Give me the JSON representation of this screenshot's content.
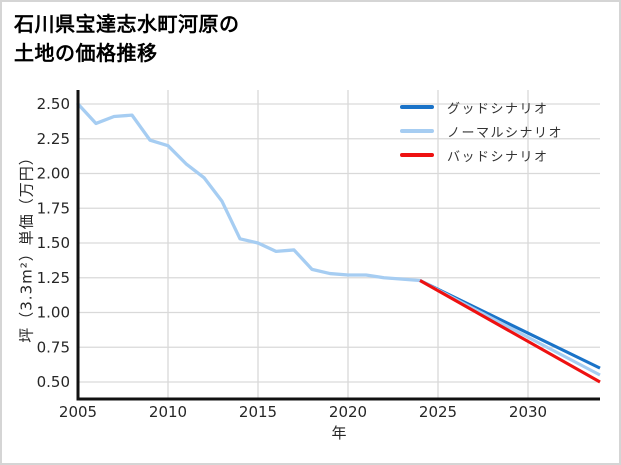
{
  "title": {
    "line1": "石川県宝達志水町河原の",
    "line2": "土地の価格推移"
  },
  "chart_data": {
    "type": "line",
    "title": "石川県宝達志水町河原の土地の価格推移",
    "xlabel": "年",
    "ylabel": "坪（3.3m²）単価（万円）",
    "x_ticks": [
      "2005",
      "2010",
      "2015",
      "2020",
      "2025",
      "2030"
    ],
    "y_ticks": [
      "2.50",
      "2.25",
      "2.00",
      "1.75",
      "1.50",
      "1.25",
      "1.00",
      "0.75",
      "0.50"
    ],
    "xlim": [
      2005,
      2034
    ],
    "ylim": [
      0.38,
      2.59
    ],
    "grid": true,
    "legend_position": "upper-right-inside",
    "colors": {
      "good": "#1a73c8",
      "normal": "#a6cdf2",
      "bad": "#ee1111",
      "grid": "#d9d9d9",
      "axis": "#111111"
    },
    "history": {
      "x": [
        2005,
        2006,
        2007,
        2008,
        2009,
        2010,
        2011,
        2012,
        2013,
        2014,
        2015,
        2016,
        2017,
        2018,
        2019,
        2020,
        2021,
        2022,
        2023,
        2024
      ],
      "values": [
        2.5,
        2.36,
        2.41,
        2.42,
        2.24,
        2.2,
        2.07,
        1.97,
        1.8,
        1.53,
        1.5,
        1.44,
        1.45,
        1.31,
        1.28,
        1.27,
        1.27,
        1.25,
        1.24,
        1.23
      ]
    },
    "series": [
      {
        "id": "good",
        "name": "グッドシナリオ",
        "color": "#1a73c8",
        "x": [
          2024,
          2034
        ],
        "values": [
          1.23,
          0.6
        ]
      },
      {
        "id": "normal",
        "name": "ノーマルシナリオ",
        "color": "#a6cdf2",
        "x": [
          2024,
          2034
        ],
        "values": [
          1.23,
          0.55
        ]
      },
      {
        "id": "bad",
        "name": "バッドシナリオ",
        "color": "#ee1111",
        "x": [
          2024,
          2034
        ],
        "values": [
          1.23,
          0.5
        ]
      }
    ]
  }
}
